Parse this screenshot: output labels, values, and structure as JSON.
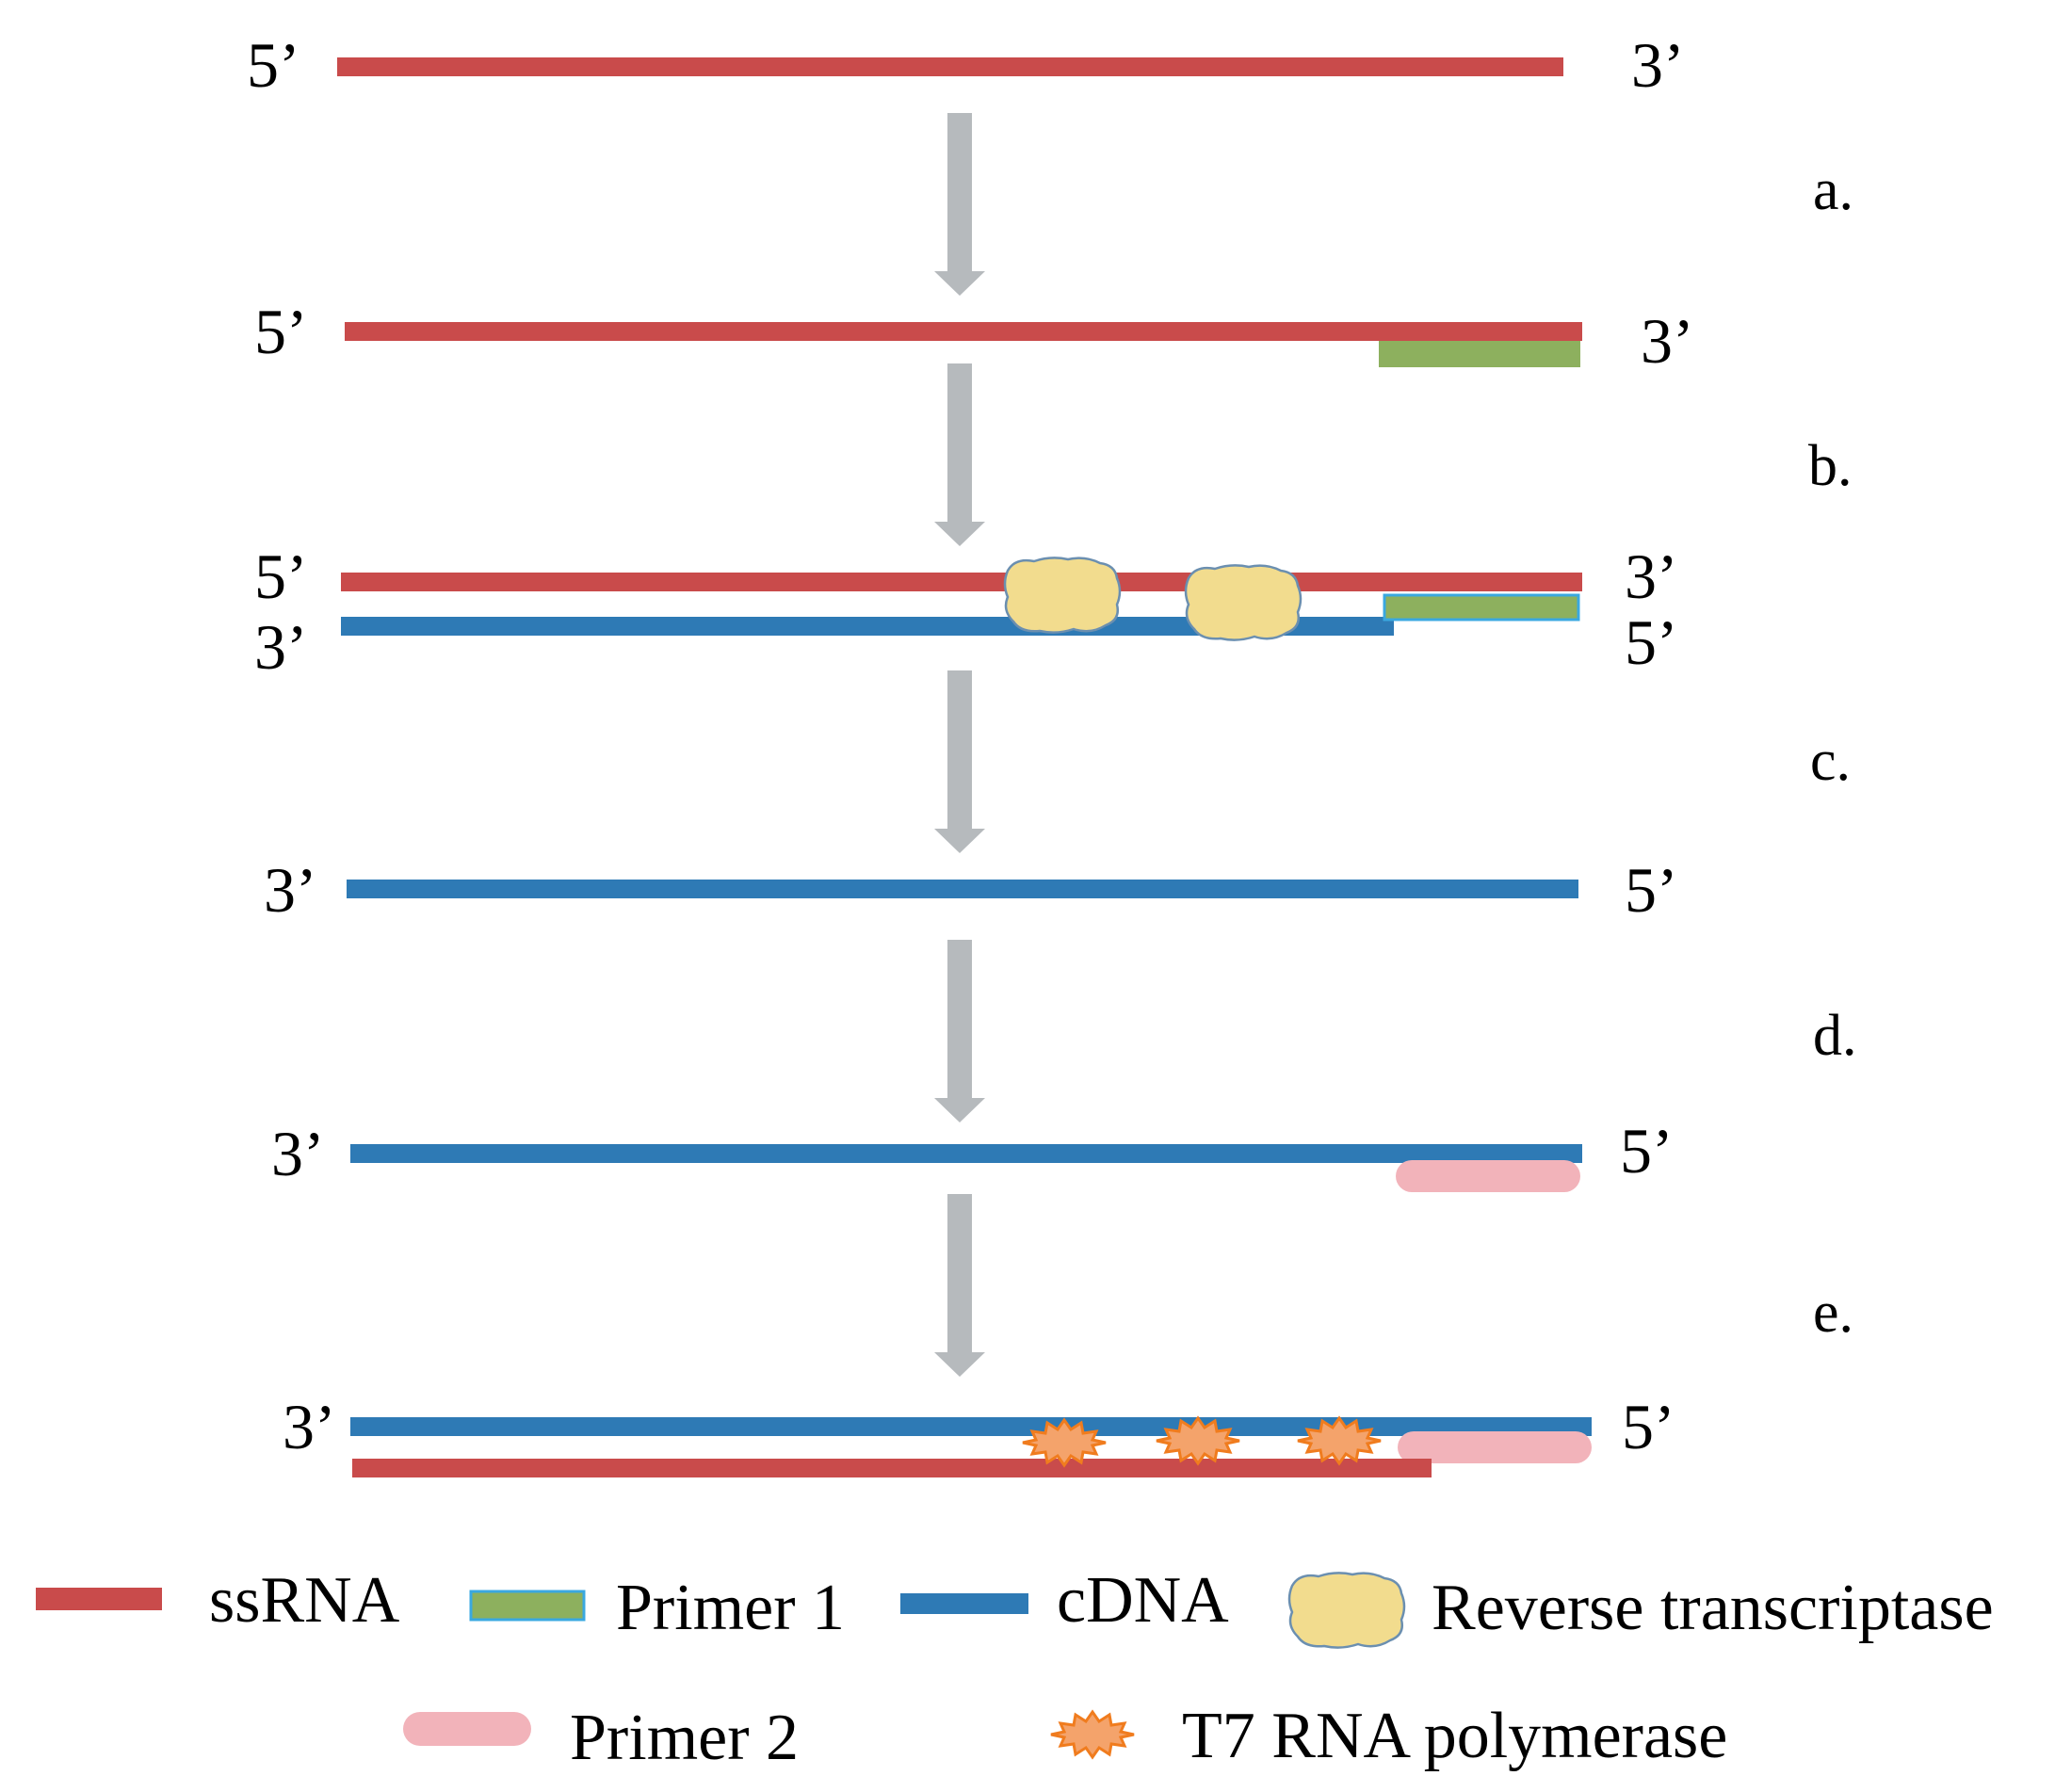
{
  "colors": {
    "ssRNA": "#c94b4b",
    "cDNA": "#2e7ab5",
    "primer1_fill": "#8db05e",
    "primer1_stroke": "#3aa8e0",
    "primer2": "#f2b3ba",
    "reverse_transcriptase_fill": "#f2dc8e",
    "reverse_transcriptase_stroke": "#6b8fb0",
    "t7_fill": "#f4a36b",
    "t7_stroke": "#f07c1e",
    "arrow": "#b6babd"
  },
  "rows": [
    {
      "left_top": "5’",
      "right_top": "3’"
    },
    {
      "left_top": "5’",
      "right_top": "3’"
    },
    {
      "left_top": "5’",
      "right_top": "3’",
      "left_bottom": "3’",
      "right_bottom": "5’"
    },
    {
      "left_top": "3’",
      "right_top": "5’"
    },
    {
      "left_top": "3’",
      "right_top": "5’"
    },
    {
      "left_top": "3’",
      "right_top": "5’"
    }
  ],
  "steps": [
    "a.",
    "b.",
    "c.",
    "d.",
    "e."
  ],
  "legend": {
    "ssRNA": "ssRNA",
    "primer1": "Primer 1",
    "cDNA": "cDNA",
    "reverse_transcriptase": "Reverse transcriptase",
    "primer2": "Primer 2",
    "t7": "T7 RNA polymerase"
  }
}
